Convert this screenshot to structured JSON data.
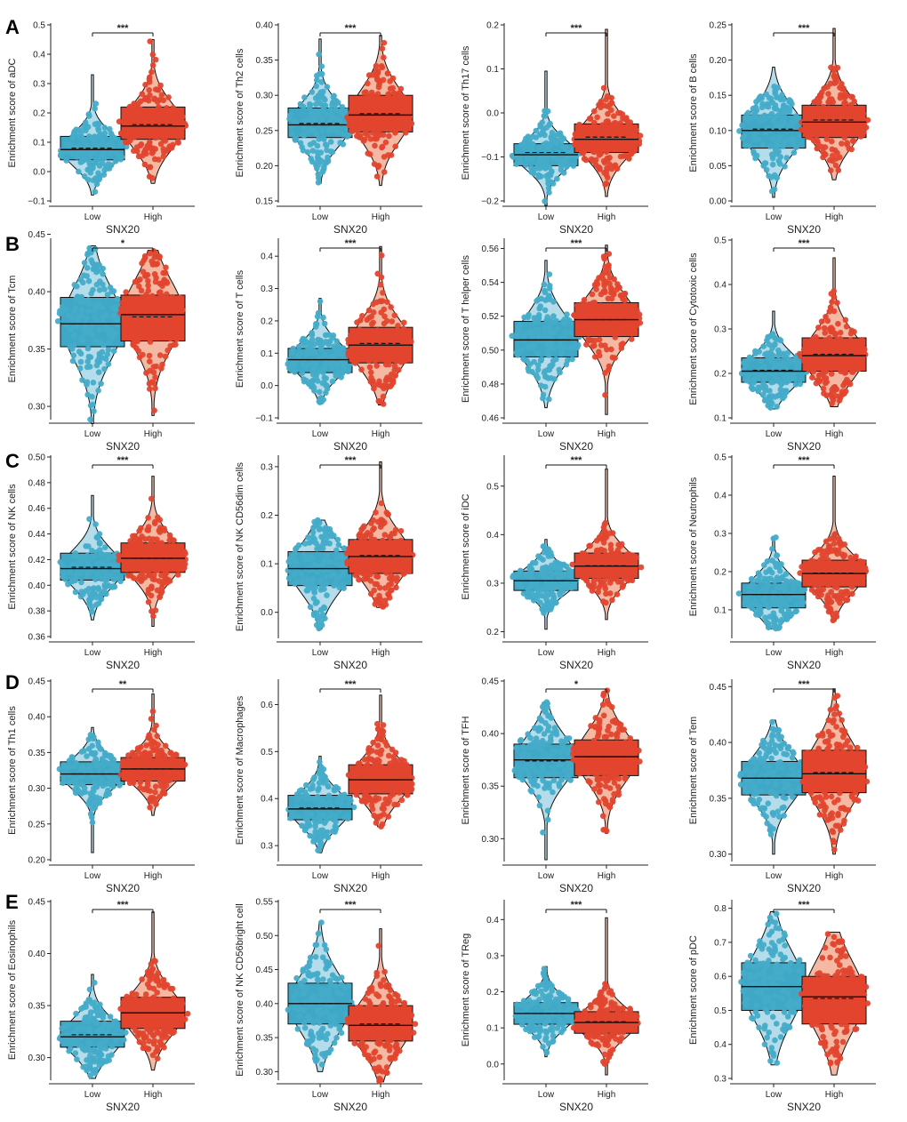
{
  "figure": {
    "rows": [
      "A",
      "B",
      "C",
      "D",
      "E"
    ],
    "colors": {
      "low": "#45acc9",
      "low_box": "#3ea8c6",
      "low_fill": "#b5dcea",
      "high": "#e2462f",
      "high_box": "#e4442b",
      "high_fill": "#f5b8a3",
      "axis": "#222222"
    }
  },
  "chart_data": [
    {
      "type": "box-violin",
      "title": "",
      "row": "A",
      "ylabel": "Enrichment score of aDC",
      "xlabel": "SNX20",
      "categories": [
        "Low",
        "High"
      ],
      "ylim": [
        -0.1,
        0.5
      ],
      "yticks": [
        -0.1,
        0,
        0.1,
        0.2,
        0.3,
        0.4,
        0.5
      ],
      "tick_labels": [
        "−0.1",
        "0.0",
        "0.1",
        "0.2",
        "0.3",
        "0.4",
        "0.5"
      ],
      "significance": "***",
      "series": [
        {
          "name": "Low",
          "q1": 0.04,
          "median": 0.075,
          "q3": 0.12,
          "mean": 0.08,
          "min": -0.08,
          "max": 0.33
        },
        {
          "name": "High",
          "q1": 0.11,
          "median": 0.155,
          "q3": 0.22,
          "mean": 0.16,
          "min": -0.04,
          "max": 0.45
        }
      ]
    },
    {
      "type": "box-violin",
      "title": "",
      "row": "A",
      "ylabel": "Enrichment score of Th2 cells",
      "xlabel": "SNX20",
      "categories": [
        "Low",
        "High"
      ],
      "ylim": [
        0.15,
        0.4
      ],
      "yticks": [
        0.15,
        0.2,
        0.25,
        0.3,
        0.35,
        0.4
      ],
      "tick_labels": [
        "0.15",
        "0.20",
        "0.25",
        "0.30",
        "0.35",
        "0.40"
      ],
      "significance": "***",
      "series": [
        {
          "name": "Low",
          "q1": 0.24,
          "median": 0.258,
          "q3": 0.282,
          "mean": 0.26,
          "min": 0.175,
          "max": 0.38
        },
        {
          "name": "High",
          "q1": 0.248,
          "median": 0.272,
          "q3": 0.3,
          "mean": 0.274,
          "min": 0.172,
          "max": 0.385
        }
      ]
    },
    {
      "type": "box-violin",
      "title": "",
      "row": "A",
      "ylabel": "Enrichment score of Th17 cells",
      "xlabel": "SNX20",
      "categories": [
        "Low",
        "High"
      ],
      "ylim": [
        -0.2,
        0.2
      ],
      "yticks": [
        -0.2,
        -0.1,
        0,
        0.1,
        0.2
      ],
      "tick_labels": [
        "−0.2",
        "−0.1",
        "0.0",
        "0.1",
        "0.2"
      ],
      "significance": "***",
      "series": [
        {
          "name": "Low",
          "q1": -0.12,
          "median": -0.095,
          "q3": -0.07,
          "mean": -0.09,
          "min": -0.21,
          "max": 0.095
        },
        {
          "name": "High",
          "q1": -0.09,
          "median": -0.06,
          "q3": -0.025,
          "mean": -0.055,
          "min": -0.19,
          "max": 0.19
        }
      ]
    },
    {
      "type": "box-violin",
      "title": "",
      "row": "A",
      "ylabel": "Enrichment score of B cells",
      "xlabel": "SNX20",
      "categories": [
        "Low",
        "High"
      ],
      "ylim": [
        0,
        0.25
      ],
      "yticks": [
        0,
        0.05,
        0.1,
        0.15,
        0.2,
        0.25
      ],
      "tick_labels": [
        "0.00",
        "0.05",
        "0.10",
        "0.15",
        "0.20",
        "0.25"
      ],
      "significance": "***",
      "series": [
        {
          "name": "Low",
          "q1": 0.075,
          "median": 0.1,
          "q3": 0.122,
          "mean": 0.102,
          "min": 0.005,
          "max": 0.19
        },
        {
          "name": "High",
          "q1": 0.09,
          "median": 0.112,
          "q3": 0.136,
          "mean": 0.115,
          "min": 0.03,
          "max": 0.245
        }
      ]
    },
    {
      "type": "box-violin",
      "title": "",
      "row": "B",
      "ylabel": "Enrichment score of Tcm",
      "xlabel": "SNX20",
      "categories": [
        "Low",
        "High"
      ],
      "ylim": [
        0.29,
        0.445
      ],
      "yticks": [
        0.3,
        0.35,
        0.4,
        0.45
      ],
      "tick_labels": [
        "0.30",
        "0.35",
        "0.40",
        "0.45"
      ],
      "significance": "*",
      "series": [
        {
          "name": "Low",
          "q1": 0.352,
          "median": 0.372,
          "q3": 0.395,
          "mean": 0.372,
          "min": 0.285,
          "max": 0.44
        },
        {
          "name": "High",
          "q1": 0.357,
          "median": 0.38,
          "q3": 0.397,
          "mean": 0.378,
          "min": 0.292,
          "max": 0.436
        }
      ]
    },
    {
      "type": "box-violin",
      "title": "",
      "row": "B",
      "ylabel": "Enrichment score of T cells",
      "xlabel": "SNX20",
      "categories": [
        "Low",
        "High"
      ],
      "ylim": [
        -0.1,
        0.45
      ],
      "yticks": [
        -0.1,
        0,
        0.1,
        0.2,
        0.3,
        0.4
      ],
      "tick_labels": [
        "−0.1",
        "0.0",
        "0.1",
        "0.2",
        "0.3",
        "0.4"
      ],
      "significance": "***",
      "series": [
        {
          "name": "Low",
          "q1": 0.04,
          "median": 0.08,
          "q3": 0.115,
          "mean": 0.08,
          "min": -0.055,
          "max": 0.27
        },
        {
          "name": "High",
          "q1": 0.07,
          "median": 0.125,
          "q3": 0.18,
          "mean": 0.13,
          "min": -0.06,
          "max": 0.43
        }
      ]
    },
    {
      "type": "box-violin",
      "title": "",
      "row": "B",
      "ylabel": "Enrichment score of T helper cells",
      "xlabel": "SNX20",
      "categories": [
        "Low",
        "High"
      ],
      "ylim": [
        0.46,
        0.565
      ],
      "yticks": [
        0.46,
        0.48,
        0.5,
        0.52,
        0.54,
        0.56
      ],
      "tick_labels": [
        "0.46",
        "0.48",
        "0.50",
        "0.52",
        "0.54",
        "0.56"
      ],
      "significance": "***",
      "series": [
        {
          "name": "Low",
          "q1": 0.496,
          "median": 0.506,
          "q3": 0.517,
          "mean": 0.506,
          "min": 0.466,
          "max": 0.553
        },
        {
          "name": "High",
          "q1": 0.508,
          "median": 0.518,
          "q3": 0.528,
          "mean": 0.518,
          "min": 0.462,
          "max": 0.562
        }
      ]
    },
    {
      "type": "box-violin",
      "title": "",
      "row": "B",
      "ylabel": "Enrichment score of Cytotoxic cells",
      "xlabel": "SNX20",
      "categories": [
        "Low",
        "High"
      ],
      "ylim": [
        0.1,
        0.5
      ],
      "yticks": [
        0.1,
        0.2,
        0.3,
        0.4,
        0.5
      ],
      "tick_labels": [
        "0.1",
        "0.2",
        "0.3",
        "0.4",
        "0.5"
      ],
      "significance": "***",
      "series": [
        {
          "name": "Low",
          "q1": 0.18,
          "median": 0.205,
          "q3": 0.235,
          "mean": 0.207,
          "min": 0.12,
          "max": 0.34
        },
        {
          "name": "High",
          "q1": 0.205,
          "median": 0.24,
          "q3": 0.28,
          "mean": 0.243,
          "min": 0.125,
          "max": 0.46
        }
      ]
    },
    {
      "type": "box-violin",
      "title": "",
      "row": "C",
      "ylabel": "Enrichment score of NK cells",
      "xlabel": "SNX20",
      "categories": [
        "Low",
        "High"
      ],
      "ylim": [
        0.36,
        0.5
      ],
      "yticks": [
        0.36,
        0.38,
        0.4,
        0.42,
        0.44,
        0.46,
        0.48,
        0.5
      ],
      "tick_labels": [
        "0.36",
        "0.38",
        "0.40",
        "0.42",
        "0.44",
        "0.46",
        "0.48",
        "0.50"
      ],
      "significance": "***",
      "series": [
        {
          "name": "Low",
          "q1": 0.404,
          "median": 0.413,
          "q3": 0.425,
          "mean": 0.414,
          "min": 0.373,
          "max": 0.47
        },
        {
          "name": "High",
          "q1": 0.41,
          "median": 0.421,
          "q3": 0.433,
          "mean": 0.421,
          "min": 0.368,
          "max": 0.485
        }
      ]
    },
    {
      "type": "box-violin",
      "title": "",
      "row": "C",
      "ylabel": "Enrichment score of NK CD56dim cells",
      "xlabel": "SNX20",
      "categories": [
        "Low",
        "High"
      ],
      "ylim": [
        -0.05,
        0.32
      ],
      "yticks": [
        0,
        0.1,
        0.2,
        0.3
      ],
      "tick_labels": [
        "0.0",
        "0.1",
        "0.2",
        "0.3"
      ],
      "significance": "***",
      "series": [
        {
          "name": "Low",
          "q1": 0.055,
          "median": 0.09,
          "q3": 0.125,
          "mean": 0.09,
          "min": -0.035,
          "max": 0.19
        },
        {
          "name": "High",
          "q1": 0.08,
          "median": 0.115,
          "q3": 0.15,
          "mean": 0.117,
          "min": 0.01,
          "max": 0.31
        }
      ]
    },
    {
      "type": "box-violin",
      "title": "",
      "row": "C",
      "ylabel": "Enrichment score of iDC",
      "xlabel": "SNX20",
      "categories": [
        "Low",
        "High"
      ],
      "ylim": [
        0.19,
        0.56
      ],
      "yticks": [
        0.2,
        0.3,
        0.4,
        0.5
      ],
      "tick_labels": [
        "0.2",
        "0.3",
        "0.4",
        "0.5"
      ],
      "significance": "***",
      "series": [
        {
          "name": "Low",
          "q1": 0.285,
          "median": 0.305,
          "q3": 0.325,
          "mean": 0.305,
          "min": 0.205,
          "max": 0.39
        },
        {
          "name": "High",
          "q1": 0.31,
          "median": 0.335,
          "q3": 0.362,
          "mean": 0.336,
          "min": 0.225,
          "max": 0.535
        }
      ]
    },
    {
      "type": "box-violin",
      "title": "",
      "row": "C",
      "ylabel": "Enrichment score of Neutrophils",
      "xlabel": "SNX20",
      "categories": [
        "Low",
        "High"
      ],
      "ylim": [
        0.03,
        0.5
      ],
      "yticks": [
        0.1,
        0.2,
        0.3,
        0.4,
        0.5
      ],
      "tick_labels": [
        "0.1",
        "0.2",
        "0.3",
        "0.4",
        "0.5"
      ],
      "significance": "***",
      "series": [
        {
          "name": "Low",
          "q1": 0.105,
          "median": 0.14,
          "q3": 0.17,
          "mean": 0.14,
          "min": 0.05,
          "max": 0.29
        },
        {
          "name": "High",
          "q1": 0.16,
          "median": 0.195,
          "q3": 0.23,
          "mean": 0.196,
          "min": 0.07,
          "max": 0.45
        }
      ]
    },
    {
      "type": "box-violin",
      "title": "",
      "row": "D",
      "ylabel": "Enrichment score of Th1 cells",
      "xlabel": "SNX20",
      "categories": [
        "Low",
        "High"
      ],
      "ylim": [
        0.2,
        0.45
      ],
      "yticks": [
        0.2,
        0.25,
        0.3,
        0.35,
        0.4,
        0.45
      ],
      "tick_labels": [
        "0.20",
        "0.25",
        "0.30",
        "0.35",
        "0.40",
        "0.45"
      ],
      "significance": "**",
      "series": [
        {
          "name": "Low",
          "q1": 0.305,
          "median": 0.32,
          "q3": 0.337,
          "mean": 0.32,
          "min": 0.21,
          "max": 0.385
        },
        {
          "name": "High",
          "q1": 0.31,
          "median": 0.327,
          "q3": 0.343,
          "mean": 0.327,
          "min": 0.262,
          "max": 0.432
        }
      ]
    },
    {
      "type": "box-violin",
      "title": "",
      "row": "D",
      "ylabel": "Enrichment score of Macrophages",
      "xlabel": "SNX20",
      "categories": [
        "Low",
        "High"
      ],
      "ylim": [
        0.27,
        0.65
      ],
      "yticks": [
        0.3,
        0.4,
        0.5,
        0.6
      ],
      "tick_labels": [
        "0.3",
        "0.4",
        "0.5",
        "0.6"
      ],
      "significance": "***",
      "series": [
        {
          "name": "Low",
          "q1": 0.355,
          "median": 0.378,
          "q3": 0.407,
          "mean": 0.38,
          "min": 0.285,
          "max": 0.49
        },
        {
          "name": "High",
          "q1": 0.41,
          "median": 0.44,
          "q3": 0.472,
          "mean": 0.44,
          "min": 0.34,
          "max": 0.62
        }
      ]
    },
    {
      "type": "box-violin",
      "title": "",
      "row": "D",
      "ylabel": "Enrichment score of TFH",
      "xlabel": "SNX20",
      "categories": [
        "Low",
        "High"
      ],
      "ylim": [
        0.28,
        0.45
      ],
      "yticks": [
        0.3,
        0.35,
        0.4,
        0.45
      ],
      "tick_labels": [
        "0.30",
        "0.35",
        "0.40",
        "0.45"
      ],
      "significance": "*",
      "series": [
        {
          "name": "Low",
          "q1": 0.358,
          "median": 0.375,
          "q3": 0.39,
          "mean": 0.374,
          "min": 0.28,
          "max": 0.43
        },
        {
          "name": "High",
          "q1": 0.36,
          "median": 0.378,
          "q3": 0.394,
          "mean": 0.378,
          "min": 0.305,
          "max": 0.442
        }
      ]
    },
    {
      "type": "box-violin",
      "title": "",
      "row": "D",
      "ylabel": "Enrichment score of Tem",
      "xlabel": "SNX20",
      "categories": [
        "Low",
        "High"
      ],
      "ylim": [
        0.295,
        0.455
      ],
      "yticks": [
        0.3,
        0.35,
        0.4,
        0.45
      ],
      "tick_labels": [
        "0.30",
        "0.35",
        "0.40",
        "0.45"
      ],
      "significance": "***",
      "series": [
        {
          "name": "Low",
          "q1": 0.353,
          "median": 0.368,
          "q3": 0.383,
          "mean": 0.368,
          "min": 0.3,
          "max": 0.42
        },
        {
          "name": "High",
          "q1": 0.355,
          "median": 0.372,
          "q3": 0.393,
          "mean": 0.373,
          "min": 0.3,
          "max": 0.448
        }
      ]
    },
    {
      "type": "box-violin",
      "title": "",
      "row": "E",
      "ylabel": "Enrichment score of Eosinophils",
      "xlabel": "SNX20",
      "categories": [
        "Low",
        "High"
      ],
      "ylim": [
        0.28,
        0.45
      ],
      "yticks": [
        0.3,
        0.35,
        0.4,
        0.45
      ],
      "tick_labels": [
        "0.30",
        "0.35",
        "0.40",
        "0.45"
      ],
      "significance": "***",
      "series": [
        {
          "name": "Low",
          "q1": 0.31,
          "median": 0.32,
          "q3": 0.335,
          "mean": 0.322,
          "min": 0.28,
          "max": 0.38
        },
        {
          "name": "High",
          "q1": 0.328,
          "median": 0.343,
          "q3": 0.358,
          "mean": 0.343,
          "min": 0.288,
          "max": 0.44
        }
      ]
    },
    {
      "type": "box-violin",
      "title": "",
      "row": "E",
      "ylabel": "Enrichment score of NK CD56bright cell",
      "xlabel": "SNX20",
      "categories": [
        "Low",
        "High"
      ],
      "ylim": [
        0.29,
        0.55
      ],
      "yticks": [
        0.3,
        0.35,
        0.4,
        0.45,
        0.5,
        0.55
      ],
      "tick_labels": [
        "0.30",
        "0.35",
        "0.40",
        "0.45",
        "0.50",
        "0.55"
      ],
      "significance": "***",
      "series": [
        {
          "name": "Low",
          "q1": 0.37,
          "median": 0.4,
          "q3": 0.43,
          "mean": 0.4,
          "min": 0.3,
          "max": 0.52
        },
        {
          "name": "High",
          "q1": 0.345,
          "median": 0.368,
          "q3": 0.397,
          "mean": 0.37,
          "min": 0.285,
          "max": 0.51
        }
      ]
    },
    {
      "type": "box-violin",
      "title": "",
      "row": "E",
      "ylabel": "Enrichment score of TReg",
      "xlabel": "SNX20",
      "categories": [
        "Low",
        "High"
      ],
      "ylim": [
        -0.04,
        0.45
      ],
      "yticks": [
        0,
        0.1,
        0.2,
        0.3,
        0.4
      ],
      "tick_labels": [
        "0.0",
        "0.1",
        "0.2",
        "0.3",
        "0.4"
      ],
      "significance": "***",
      "series": [
        {
          "name": "Low",
          "q1": 0.11,
          "median": 0.14,
          "q3": 0.17,
          "mean": 0.14,
          "min": 0.02,
          "max": 0.27
        },
        {
          "name": "High",
          "q1": 0.085,
          "median": 0.115,
          "q3": 0.145,
          "mean": 0.117,
          "min": -0.03,
          "max": 0.405
        }
      ]
    },
    {
      "type": "box-violin",
      "title": "",
      "row": "E",
      "ylabel": "Enrichment score of pDC",
      "xlabel": "SNX20",
      "categories": [
        "Low",
        "High"
      ],
      "ylim": [
        0.3,
        0.82
      ],
      "yticks": [
        0.3,
        0.4,
        0.5,
        0.6,
        0.7,
        0.8
      ],
      "tick_labels": [
        "0.3",
        "0.4",
        "0.5",
        "0.6",
        "0.7",
        "0.8"
      ],
      "significance": "***",
      "series": [
        {
          "name": "Low",
          "q1": 0.5,
          "median": 0.57,
          "q3": 0.64,
          "mean": 0.57,
          "min": 0.34,
          "max": 0.79
        },
        {
          "name": "High",
          "q1": 0.46,
          "median": 0.54,
          "q3": 0.6,
          "mean": 0.535,
          "min": 0.31,
          "max": 0.73
        }
      ]
    }
  ]
}
